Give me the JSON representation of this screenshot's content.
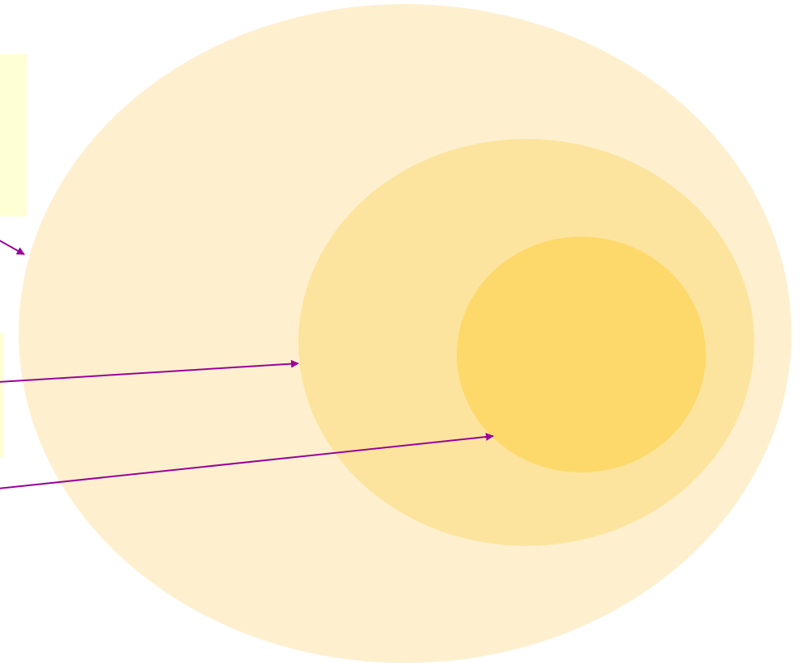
{
  "diagram": {
    "colors": {
      "background": "#FFFFFF",
      "outer_ellipse": "#FEF0CF",
      "middle_ellipse": "#FDE49E",
      "inner_ellipse": "#FDD96B",
      "label_box": "#FFFFD6",
      "arrow": "#990099"
    },
    "ellipses": [
      {
        "id": "outer",
        "label": ""
      },
      {
        "id": "middle",
        "label": ""
      },
      {
        "id": "inner",
        "label": ""
      }
    ],
    "label_boxes": [
      {
        "id": "top-box",
        "text": ""
      },
      {
        "id": "middle-box",
        "text": ""
      }
    ],
    "arrows": [
      {
        "from": "top-box",
        "to": "outer"
      },
      {
        "from": "middle-box",
        "to": "middle"
      },
      {
        "from": "bottom-label",
        "to": "inner"
      }
    ]
  }
}
